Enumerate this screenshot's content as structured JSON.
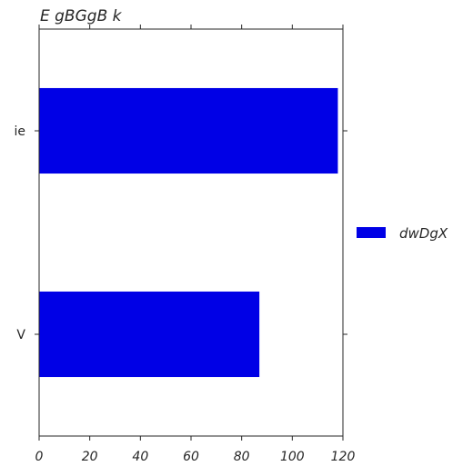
{
  "chart_data": {
    "type": "bar",
    "orientation": "horizontal",
    "title": "E  gBGgB  k",
    "xlabel": "",
    "ylabel": "",
    "categories": [
      "ie",
      "V"
    ],
    "series": [
      {
        "name": "dwDgX",
        "values": [
          118,
          87
        ],
        "color": "#0000e6"
      }
    ],
    "xlim": [
      0,
      120
    ],
    "xticks": [
      0,
      20,
      40,
      60,
      80,
      100,
      120
    ],
    "grid": false,
    "legend": "right"
  }
}
